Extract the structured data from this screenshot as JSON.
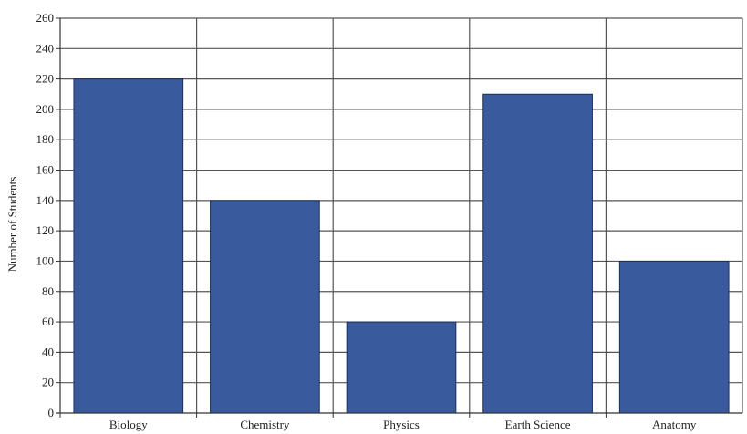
{
  "chart_data": {
    "type": "bar",
    "title": "",
    "xlabel": "",
    "ylabel": "Number of Students",
    "categories": [
      "Biology",
      "Chemistry",
      "Physics",
      "Earth Science",
      "Anatomy"
    ],
    "values": [
      220,
      140,
      60,
      210,
      100
    ],
    "ylim": [
      0,
      260
    ],
    "ytick_step": 20,
    "grid": true,
    "legend": "none",
    "bar_color": "#3a5a9e",
    "bar_edge_color": "#1f2f55"
  }
}
